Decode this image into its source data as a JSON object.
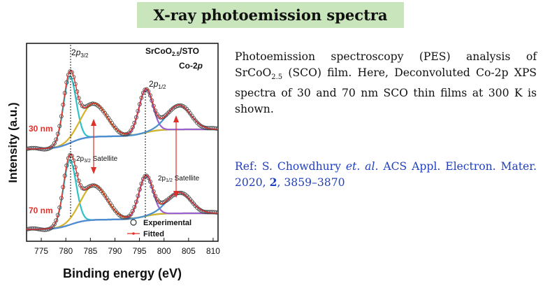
{
  "title": "X-ray photoemission spectra",
  "figure": {
    "sample_label": "SrCoO",
    "sample_sub": "2.5",
    "sample_suffix": "/STO",
    "core_level": "Co-2p",
    "ylabel": "Intensity (a.u.)",
    "xlabel": "Binding energy (eV)",
    "peak_32": "2p3/2",
    "peak_12": "2p1/2",
    "sat_32": "2p3/2 Satellite",
    "sat_12": "2p1/2 Satellite",
    "label_30": "30 nm",
    "label_70": "70 nm",
    "legend_experimental": "Experimental",
    "legend_fitted": "Fitted"
  },
  "chart_data": {
    "type": "line",
    "title": "",
    "xlabel": "Binding energy (eV)",
    "ylabel": "Intensity (a.u.)",
    "xlim": [
      772,
      811
    ],
    "x_ticks": [
      775,
      780,
      785,
      790,
      795,
      800,
      805,
      810
    ],
    "peak_markers_eV": [
      780.8,
      796.3
    ],
    "series": [
      {
        "name": "30 nm",
        "x": [
          772,
          776,
          779,
          780.8,
          782.5,
          785.5,
          788,
          791,
          794,
          796.3,
          798,
          800,
          803,
          806,
          810
        ],
        "y": [
          0.22,
          0.28,
          0.55,
          1.0,
          0.55,
          0.62,
          0.55,
          0.45,
          0.5,
          0.85,
          0.45,
          0.42,
          0.5,
          0.32,
          0.25
        ]
      },
      {
        "name": "70 nm",
        "x": [
          772,
          776,
          779,
          780.8,
          782.5,
          785.5,
          788,
          791,
          794,
          796.3,
          798,
          800,
          803,
          806,
          810
        ],
        "y": [
          0.12,
          0.2,
          0.62,
          0.98,
          0.5,
          0.55,
          0.45,
          0.3,
          0.38,
          0.72,
          0.35,
          0.3,
          0.4,
          0.2,
          0.12
        ]
      }
    ]
  },
  "description": {
    "part1": "Photoemission spectroscopy (PES) analysis of SrCoO",
    "sub": "2.5",
    "part2": " (SCO) film. Here, Deconvoluted Co-2p XPS spectra of 30 and 70 nm SCO thin films at 300 K is shown."
  },
  "reference": {
    "prefix": "Ref: S. Chowdhury ",
    "etal": "et. al.",
    "journal": " ACS Appl. Electron. Mater. 2020, ",
    "volume": "2",
    "pages": ", 3859–3870"
  },
  "colors": {
    "title_bg": "#c9e5bb",
    "ref_text": "#1f3fbf",
    "label_red": "#e0302a",
    "fit_red": "#e0302a",
    "comp_cyan": "#2ec3c8",
    "comp_yellow": "#d7b229",
    "comp_purple": "#9b62d0",
    "comp_blue": "#4a8fd0",
    "comp_green": "#8ac34a"
  }
}
